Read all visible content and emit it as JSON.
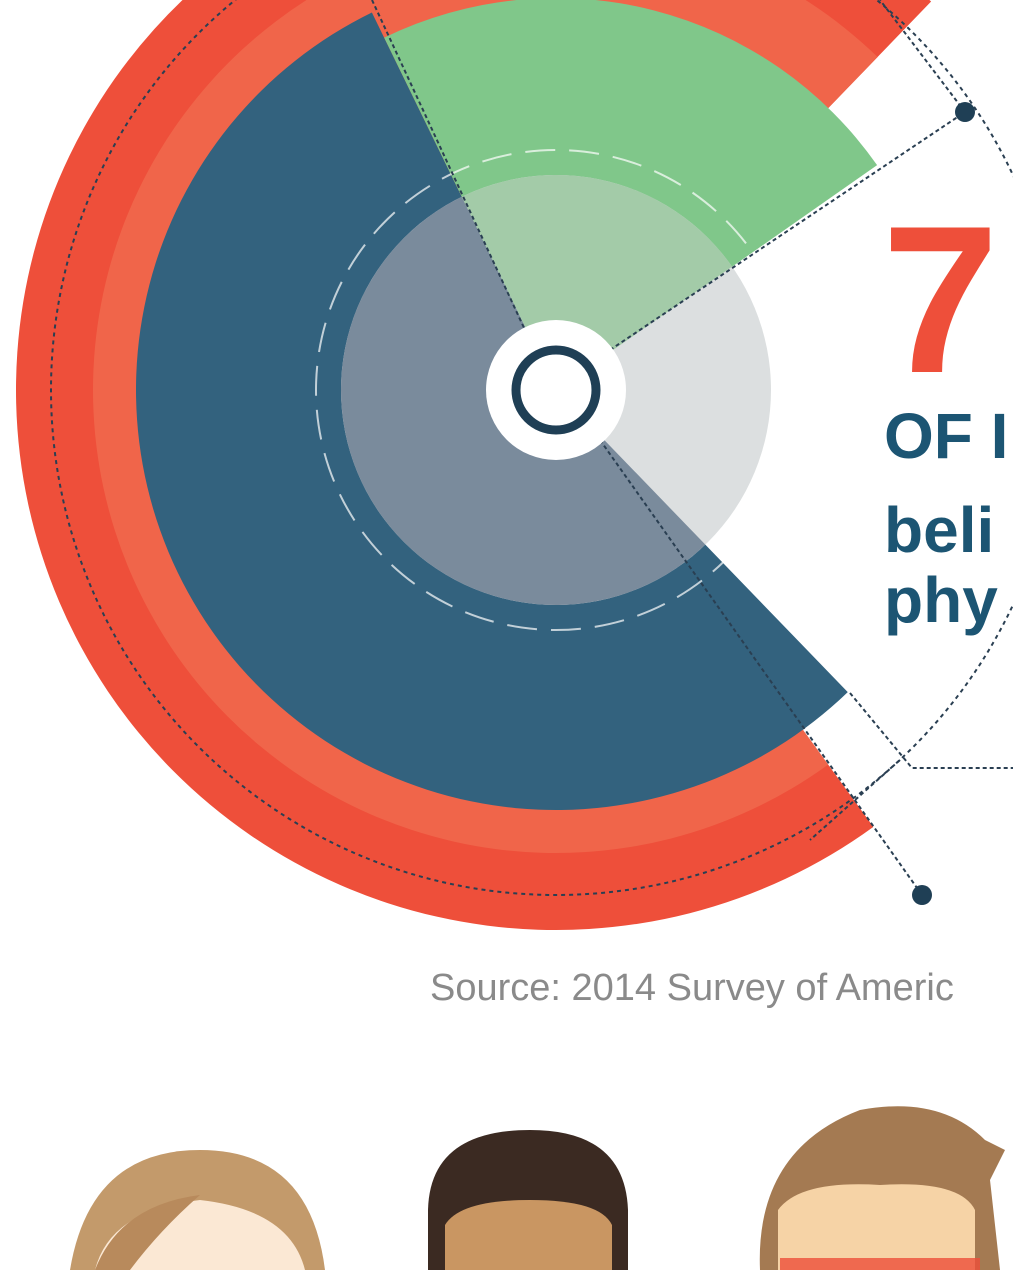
{
  "headline": {
    "number": "7",
    "lines": [
      "OF I",
      "beli",
      "phy"
    ]
  },
  "source": "Source: 2014 Survey of Americ"
}
